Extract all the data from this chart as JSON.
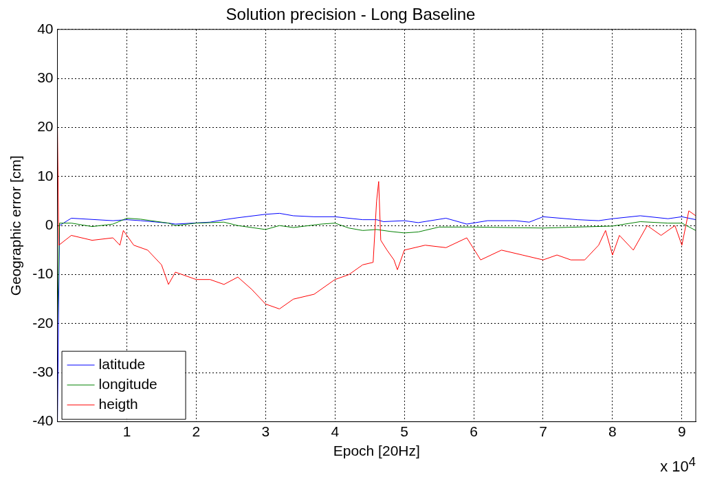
{
  "chart_data": {
    "type": "line",
    "title": "Solution precision - Long Baseline",
    "xlabel": "Epoch [20Hz]",
    "ylabel": "Geographic error [cm]",
    "annotations": [
      "x 10$^{4}$"
    ],
    "xlim": [
      0,
      9.2
    ],
    "xticks": [
      1,
      2,
      3,
      4,
      5,
      6,
      7,
      8,
      9
    ],
    "ylim": [
      -40,
      40
    ],
    "yticks": [
      -40,
      -30,
      -20,
      -10,
      0,
      10,
      20,
      30,
      40
    ],
    "grid": true,
    "legend": "bottom left",
    "marker": "none",
    "line_style": "solid",
    "series": [
      {
        "name": "latitude",
        "color": "#0000ff",
        "x": [
          0,
          0.03,
          0.2,
          0.8,
          1,
          1.2,
          1.6,
          1.7,
          2.2,
          2.4,
          2.6,
          3,
          3.2,
          3.4,
          3.7,
          4,
          4.4,
          4.6,
          4.7,
          5,
          5.2,
          5.6,
          5.9,
          6.2,
          6.6,
          6.8,
          7,
          7.5,
          7.8,
          8,
          8.4,
          8.8,
          9,
          9.2
        ],
        "values": [
          -40,
          0,
          1.5,
          1,
          1.2,
          1,
          0.5,
          0.3,
          0.7,
          1.2,
          1.6,
          2.3,
          2.5,
          2,
          1.8,
          1.8,
          1.2,
          1.2,
          0.8,
          1,
          0.6,
          1.5,
          0.3,
          1,
          1,
          0.7,
          1.8,
          1.2,
          1,
          1.4,
          2,
          1.4,
          1.8,
          1.2
        ]
      },
      {
        "name": "longitude",
        "color": "#008000",
        "x": [
          0,
          0.03,
          0.2,
          0.5,
          0.8,
          1,
          1.2,
          1.6,
          1.7,
          2,
          2.4,
          2.6,
          3,
          3.2,
          3.4,
          3.8,
          4,
          4.2,
          4.4,
          4.6,
          4.8,
          5,
          5.2,
          5.5,
          6,
          7,
          8,
          8.4,
          8.8,
          9,
          9.2
        ],
        "values": [
          -20,
          0.5,
          0.5,
          -0.2,
          0.3,
          1.5,
          1.3,
          0.5,
          0,
          0.5,
          0.7,
          0,
          -0.8,
          0,
          -0.4,
          0.3,
          0.5,
          -0.5,
          -1,
          -0.8,
          -1.2,
          -1.5,
          -1.3,
          -0.3,
          -0.3,
          -0.5,
          -0.1,
          0.8,
          0.5,
          0.5,
          -1
        ]
      },
      {
        "name": "heigth",
        "color": "#ff0000",
        "x": [
          0,
          0.02,
          0.2,
          0.5,
          0.8,
          0.9,
          0.95,
          1,
          1.1,
          1.3,
          1.5,
          1.6,
          1.7,
          2,
          2.2,
          2.4,
          2.6,
          2.8,
          3,
          3.2,
          3.4,
          3.7,
          4,
          4.2,
          4.4,
          4.55,
          4.6,
          4.63,
          4.66,
          4.75,
          4.85,
          4.9,
          5,
          5.3,
          5.6,
          5.9,
          6.1,
          6.4,
          6.7,
          7,
          7.2,
          7.4,
          7.6,
          7.8,
          7.9,
          8,
          8.1,
          8.3,
          8.5,
          8.7,
          8.9,
          9,
          9.1,
          9.2
        ],
        "values": [
          20,
          -4,
          -2,
          -3,
          -2.5,
          -4,
          -1,
          -2,
          -4,
          -5,
          -8,
          -12,
          -9.5,
          -11,
          -11,
          -12,
          -10.5,
          -13,
          -16,
          -17,
          -15,
          -14,
          -11,
          -10,
          -8,
          -7.5,
          5,
          9,
          -3,
          -5,
          -7,
          -9,
          -5,
          -4,
          -4.5,
          -2.5,
          -7,
          -5,
          -6,
          -7,
          -6,
          -7,
          -7,
          -4,
          -1,
          -6,
          -2,
          -5,
          0,
          -2,
          0,
          -4,
          3,
          2
        ]
      }
    ]
  }
}
